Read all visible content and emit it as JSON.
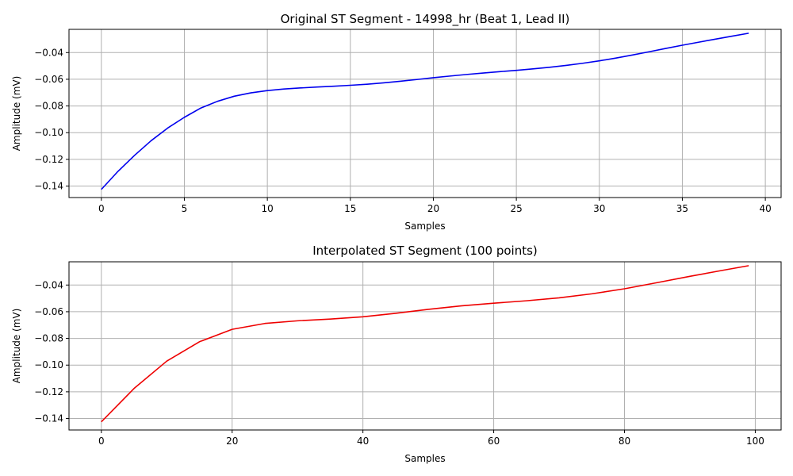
{
  "chart_data": [
    {
      "type": "line",
      "title": "Original ST Segment - 14998_hr (Beat 1, Lead II)",
      "xlabel": "Samples",
      "ylabel": "Amplitude (mV)",
      "xlim": [
        -1.95,
        40.95
      ],
      "ylim": [
        -0.1486,
        -0.0226
      ],
      "xticks": [
        0,
        5,
        10,
        15,
        20,
        25,
        30,
        35,
        40
      ],
      "xtick_labels": [
        "0",
        "5",
        "10",
        "15",
        "20",
        "25",
        "30",
        "35",
        "40"
      ],
      "yticks": [
        -0.14,
        -0.12,
        -0.1,
        -0.08,
        -0.06,
        -0.04
      ],
      "ytick_labels": [
        "−0.14",
        "−0.12",
        "−0.10",
        "−0.08",
        "−0.06",
        "−0.04"
      ],
      "grid": true,
      "color": "#0000ee",
      "x": [
        0,
        1,
        2,
        3,
        4,
        5,
        6,
        7,
        8,
        9,
        10,
        11,
        12,
        13,
        14,
        15,
        16,
        17,
        18,
        19,
        20,
        21,
        22,
        23,
        24,
        25,
        26,
        27,
        28,
        29,
        30,
        31,
        32,
        33,
        34,
        35,
        36,
        37,
        38,
        39
      ],
      "y": [
        -0.1425,
        -0.129,
        -0.117,
        -0.106,
        -0.0965,
        -0.0885,
        -0.0815,
        -0.0765,
        -0.0727,
        -0.0702,
        -0.0685,
        -0.0673,
        -0.0665,
        -0.0658,
        -0.0652,
        -0.0645,
        -0.0637,
        -0.0627,
        -0.0615,
        -0.0602,
        -0.0588,
        -0.0576,
        -0.0564,
        -0.0553,
        -0.0543,
        -0.0533,
        -0.0522,
        -0.051,
        -0.0496,
        -0.048,
        -0.0462,
        -0.0441,
        -0.0418,
        -0.0394,
        -0.0369,
        -0.0345,
        -0.0322,
        -0.0299,
        -0.0277,
        -0.0255
      ]
    },
    {
      "type": "line",
      "title": "Interpolated ST Segment (100 points)",
      "xlabel": "Samples",
      "ylabel": "Amplitude (mV)",
      "xlim": [
        -4.95,
        103.95
      ],
      "ylim": [
        -0.1486,
        -0.0226
      ],
      "xticks": [
        0,
        20,
        40,
        60,
        80,
        100
      ],
      "xtick_labels": [
        "0",
        "20",
        "40",
        "60",
        "80",
        "100"
      ],
      "yticks": [
        -0.14,
        -0.12,
        -0.1,
        -0.08,
        -0.06,
        -0.04
      ],
      "ytick_labels": [
        "−0.14",
        "−0.12",
        "−0.10",
        "−0.08",
        "−0.06",
        "−0.04"
      ],
      "grid": true,
      "color": "#ee0000",
      "x": [
        0,
        5,
        10,
        15,
        20,
        25,
        30,
        35,
        40,
        45,
        50,
        55,
        60,
        65,
        70,
        75,
        80,
        85,
        90,
        95,
        99
      ],
      "y": [
        -0.1425,
        -0.1175,
        -0.097,
        -0.0825,
        -0.0732,
        -0.0688,
        -0.0668,
        -0.0655,
        -0.0638,
        -0.0612,
        -0.0582,
        -0.0556,
        -0.0536,
        -0.0518,
        -0.0496,
        -0.0466,
        -0.0428,
        -0.0382,
        -0.0335,
        -0.029,
        -0.0255
      ]
    }
  ]
}
